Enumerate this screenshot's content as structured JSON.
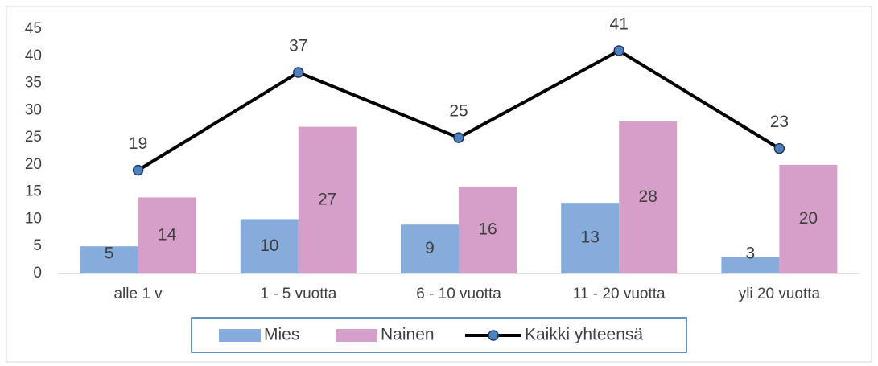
{
  "chart_data": {
    "type": "bar",
    "categories": [
      "alle 1 v",
      "1 - 5 vuotta",
      "6 - 10 vuotta",
      "11 - 20 vuotta",
      "yli 20 vuotta"
    ],
    "series": [
      {
        "name": "Mies",
        "color": "#86acdc",
        "values": [
          5,
          10,
          9,
          13,
          3
        ]
      },
      {
        "name": "Nainen",
        "color": "#d69fca",
        "values": [
          14,
          27,
          16,
          28,
          20
        ]
      },
      {
        "name": "Kaikki yhteensä",
        "type": "line",
        "color": "#000000",
        "marker_color": "#4f81bd",
        "values": [
          19,
          37,
          25,
          41,
          23
        ]
      }
    ],
    "ylim": [
      0,
      45
    ],
    "yticks": [
      0,
      5,
      10,
      15,
      20,
      25,
      30,
      35,
      40,
      45
    ],
    "grid": false,
    "legend": "bottom"
  }
}
